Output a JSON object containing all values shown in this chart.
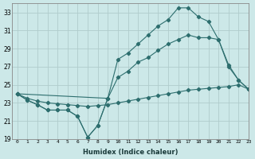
{
  "xlabel": "Humidex (Indice chaleur)",
  "background_color": "#cce8e8",
  "grid_color": "#b0cccc",
  "line_color": "#2d6e6e",
  "xlim": [
    -0.5,
    23
  ],
  "ylim": [
    19,
    34
  ],
  "xticks": [
    0,
    1,
    2,
    3,
    4,
    5,
    6,
    7,
    8,
    9,
    10,
    11,
    12,
    13,
    14,
    15,
    16,
    17,
    18,
    19,
    20,
    21,
    22,
    23
  ],
  "yticks": [
    19,
    21,
    23,
    25,
    27,
    29,
    31,
    33
  ],
  "series_flat_x": [
    0,
    1,
    2,
    3,
    4,
    5,
    6,
    7,
    8,
    9,
    10,
    11,
    12,
    13,
    14,
    15,
    16,
    17,
    18,
    19,
    20,
    21,
    22,
    23
  ],
  "series_flat_y": [
    24.0,
    23.5,
    23.2,
    23.0,
    22.9,
    22.8,
    22.7,
    22.6,
    22.7,
    22.8,
    23.0,
    23.2,
    23.4,
    23.6,
    23.8,
    24.0,
    24.2,
    24.4,
    24.5,
    24.6,
    24.7,
    24.8,
    25.0,
    24.5
  ],
  "series_dip_x": [
    0,
    1,
    2,
    3,
    4,
    5,
    6,
    7,
    8,
    9
  ],
  "series_dip_y": [
    24.0,
    23.3,
    22.8,
    22.2,
    22.2,
    22.2,
    21.5,
    19.2,
    20.5,
    23.5
  ],
  "series_peak_x": [
    0,
    1,
    2,
    3,
    4,
    5,
    6,
    7,
    8,
    9,
    10,
    11,
    12,
    13,
    14,
    15,
    16,
    17,
    18,
    19,
    20,
    21,
    22,
    23
  ],
  "series_peak_y": [
    24.0,
    23.3,
    22.8,
    22.2,
    22.2,
    22.2,
    21.5,
    19.2,
    20.5,
    23.5,
    27.8,
    28.5,
    29.5,
    30.5,
    31.5,
    32.2,
    33.5,
    33.5,
    32.5,
    32.0,
    30.0,
    27.0,
    25.5,
    24.5
  ],
  "series_mid_x": [
    0,
    9,
    10,
    11,
    12,
    13,
    14,
    15,
    16,
    17,
    18,
    19,
    20,
    21,
    22,
    23
  ],
  "series_mid_y": [
    24.0,
    23.5,
    25.8,
    26.5,
    27.5,
    28.0,
    28.8,
    29.5,
    30.0,
    30.5,
    30.2,
    30.2,
    30.0,
    27.2,
    25.5,
    24.5
  ]
}
